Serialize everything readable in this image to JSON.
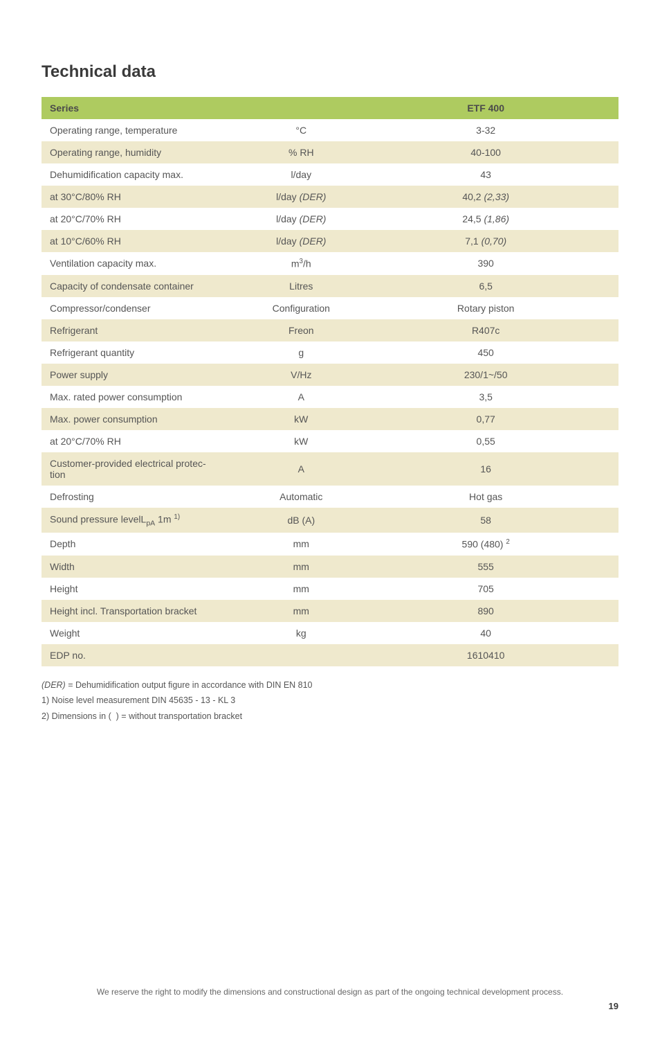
{
  "heading": "Technical data",
  "colors": {
    "header_row": "#aecb60",
    "odd_row": "#efe9cd",
    "even_row": "#ffffff",
    "border": "#d8d4b8"
  },
  "table": {
    "header": {
      "series": "Series",
      "model": "ETF 400"
    },
    "rows": [
      {
        "param": "Operating range, temperature",
        "unit_html": "°C",
        "value_html": "3-32"
      },
      {
        "param": "Operating range, humidity",
        "unit_html": "% RH",
        "value_html": "40-100"
      },
      {
        "param": "Dehumidification capacity max.",
        "unit_html": "l/day",
        "value_html": "43"
      },
      {
        "param": "at 30°C/80% RH",
        "unit_html": "l/day  <span class=\"italic\">(DER)</span>",
        "value_html": "40,2  <span class=\"italic\">(2,33)</span>"
      },
      {
        "param": "at 20°C/70% RH",
        "unit_html": "l/day  <span class=\"italic\">(DER)</span>",
        "value_html": "24,5  <span class=\"italic\">(1,86)</span>"
      },
      {
        "param": "at 10°C/60% RH",
        "unit_html": "l/day  <span class=\"italic\">(DER)</span>",
        "value_html": "7,1  <span class=\"italic\">(0,70)</span>"
      },
      {
        "param": "Ventilation capacity max.",
        "unit_html": "m<span class=\"sup\">3</span>/h",
        "value_html": "390"
      },
      {
        "param": "Capacity of condensate container",
        "unit_html": "Litres",
        "value_html": "6,5"
      },
      {
        "param": "Compressor/condenser",
        "unit_html": "Configuration",
        "value_html": "Rotary piston"
      },
      {
        "param": "Refrigerant",
        "unit_html": "Freon",
        "value_html": "R407c"
      },
      {
        "param": "Refrigerant quantity",
        "unit_html": "g",
        "value_html": "450"
      },
      {
        "param": "Power supply",
        "unit_html": "V/Hz",
        "value_html": "230/1~/50"
      },
      {
        "param": "Max. rated power consumption",
        "unit_html": "A",
        "value_html": "3,5"
      },
      {
        "param": "Max. power consumption",
        "unit_html": "kW",
        "value_html": "0,77"
      },
      {
        "param": "at 20°C/70% RH",
        "unit_html": "kW",
        "value_html": "0,55"
      },
      {
        "param_html": "Customer-provided electrical protec-<br>tion",
        "unit_html": "A",
        "value_html": "16"
      },
      {
        "param": "Defrosting",
        "unit_html": "Automatic",
        "value_html": "Hot gas"
      },
      {
        "param_html": "Sound pressure levelL<span class=\"sub\">pA</span> 1m <span class=\"sup\">1)</span>",
        "unit_html": "dB (A)",
        "value_html": "58"
      },
      {
        "param": "Depth",
        "unit_html": "mm",
        "value_html": "590  (480) <span class=\"sup\">2</span>"
      },
      {
        "param": "Width",
        "unit_html": "mm",
        "value_html": "555"
      },
      {
        "param": "Height",
        "unit_html": "mm",
        "value_html": "705"
      },
      {
        "param": "Height incl. Transportation bracket",
        "unit_html": "mm",
        "value_html": "890"
      },
      {
        "param": "Weight",
        "unit_html": "kg",
        "value_html": "40"
      },
      {
        "param": "EDP no.",
        "unit_html": "",
        "value_html": "1610410"
      }
    ]
  },
  "footnotes": [
    {
      "html": "<span class=\"italic\">(DER)</span> = Dehumidification output figure in accordance with DIN EN 810"
    },
    {
      "html": "1) Noise level measurement DIN 45635 - 13 - KL 3"
    },
    {
      "html": "2) Dimensions in (&nbsp;&nbsp;) = without transportation bracket"
    }
  ],
  "footer": {
    "text": "We reserve the right to modify the dimensions and constructional design as part of the ongoing technical development process.",
    "page": "19"
  }
}
